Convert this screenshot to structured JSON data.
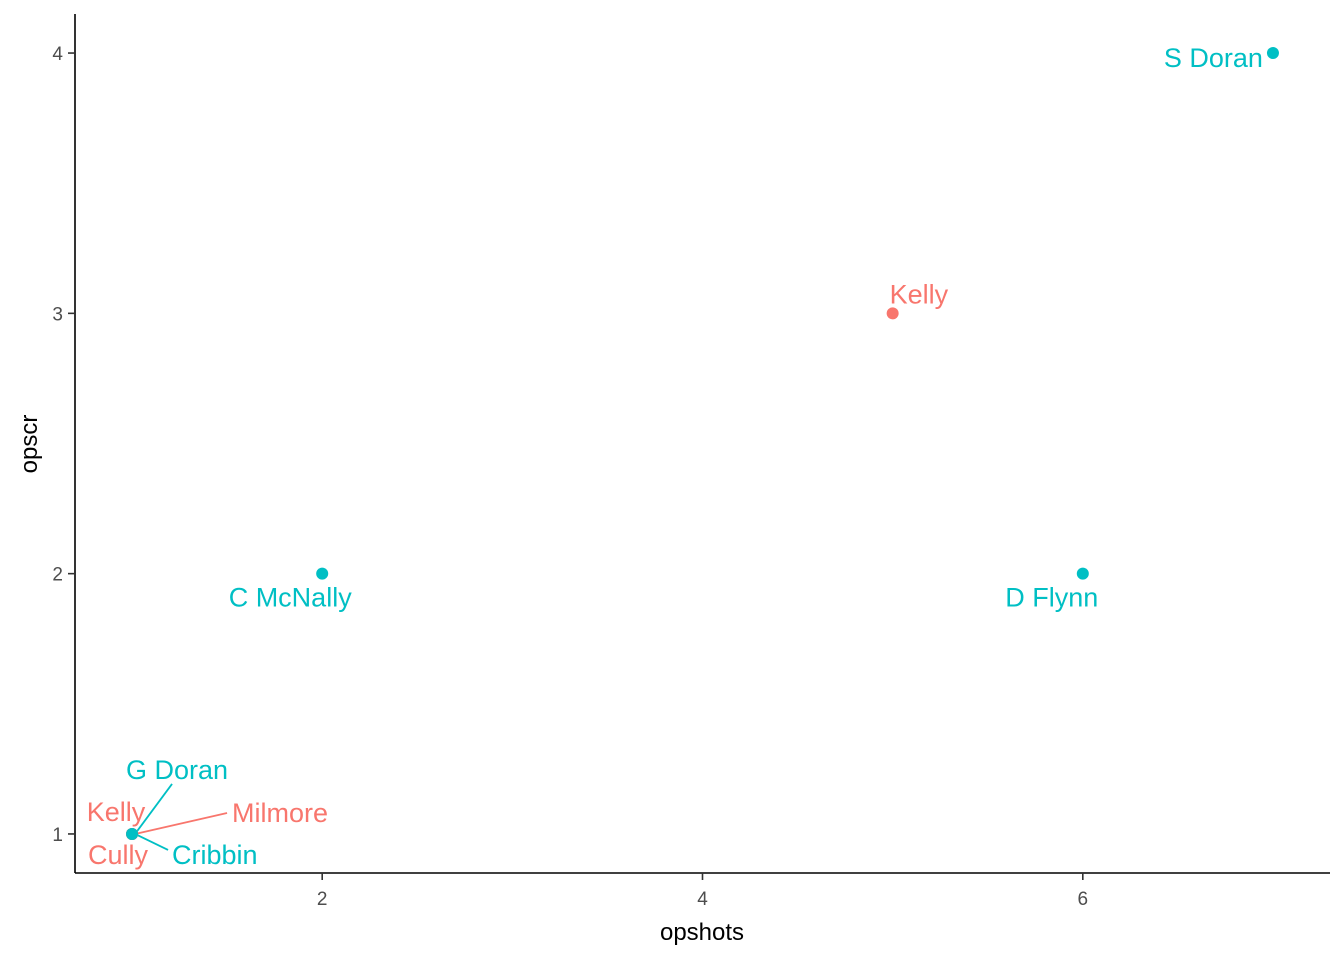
{
  "chart_data": {
    "type": "scatter",
    "title": "",
    "xlabel": "opshots",
    "ylabel": "opscr",
    "xlim": [
      0.7,
      7.3
    ],
    "ylim": [
      0.85,
      4.15
    ],
    "x_ticks": [
      2,
      4,
      6
    ],
    "y_ticks": [
      1,
      2,
      3,
      4
    ],
    "grid": false,
    "legend": "none",
    "groups": [
      {
        "key": "red",
        "color": "#F8766D"
      },
      {
        "key": "teal",
        "color": "#00BFC4"
      }
    ],
    "points": [
      {
        "label": "S Doran",
        "x": 7,
        "y": 4,
        "group": "teal"
      },
      {
        "label": "Kelly",
        "x": 5,
        "y": 3,
        "group": "red"
      },
      {
        "label": "C McNally",
        "x": 2,
        "y": 2,
        "group": "teal"
      },
      {
        "label": "D Flynn",
        "x": 6,
        "y": 2,
        "group": "teal"
      },
      {
        "label": "G Doran",
        "x": 1,
        "y": 1,
        "group": "teal"
      },
      {
        "label": "Kelly",
        "x": 1,
        "y": 1,
        "group": "red"
      },
      {
        "label": "Milmore",
        "x": 1,
        "y": 1,
        "group": "red"
      },
      {
        "label": "Cully",
        "x": 1,
        "y": 1,
        "group": "red"
      },
      {
        "label": "Cribbin",
        "x": 1,
        "y": 1,
        "group": "teal"
      }
    ]
  }
}
